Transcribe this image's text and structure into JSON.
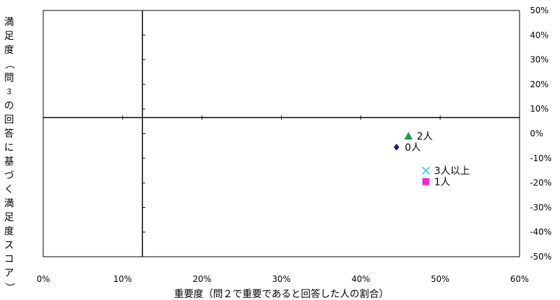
{
  "chart_data": {
    "type": "scatter",
    "xlabel": "重要度（問２で重要であると回答した人の割合）",
    "ylabel": "満足度（問３の回答に基づく満足度スコア）",
    "xlim": [
      0,
      60
    ],
    "ylim": [
      -50,
      50
    ],
    "x_ticks": [
      "0%",
      "10%",
      "20%",
      "30%",
      "40%",
      "50%",
      "60%"
    ],
    "y_ticks": [
      "50%",
      "40%",
      "30%",
      "20%",
      "10%",
      "0%",
      "-10%",
      "-20%",
      "-30%",
      "-40%",
      "-50%"
    ],
    "x_tick_values": [
      0,
      10,
      20,
      30,
      40,
      50,
      60
    ],
    "y_tick_values": [
      50,
      40,
      30,
      20,
      10,
      0,
      -10,
      -20,
      -30,
      -40,
      -50
    ],
    "reference_lines": {
      "x": 12.5,
      "y": 6.5
    },
    "y_axis_side": "right",
    "grid": false,
    "points": [
      {
        "label": "2人",
        "x": 46.0,
        "y": -1.0,
        "marker": "triangle",
        "color": "#1a9e4a"
      },
      {
        "label": "0人",
        "x": 44.5,
        "y": -5.5,
        "marker": "diamond",
        "color": "#1c1c7a"
      },
      {
        "label": "3人以上",
        "x": 48.2,
        "y": -15.0,
        "marker": "x",
        "color": "#33d4e0"
      },
      {
        "label": "1人",
        "x": 48.2,
        "y": -19.5,
        "marker": "square",
        "color": "#ff1fd2"
      }
    ]
  }
}
